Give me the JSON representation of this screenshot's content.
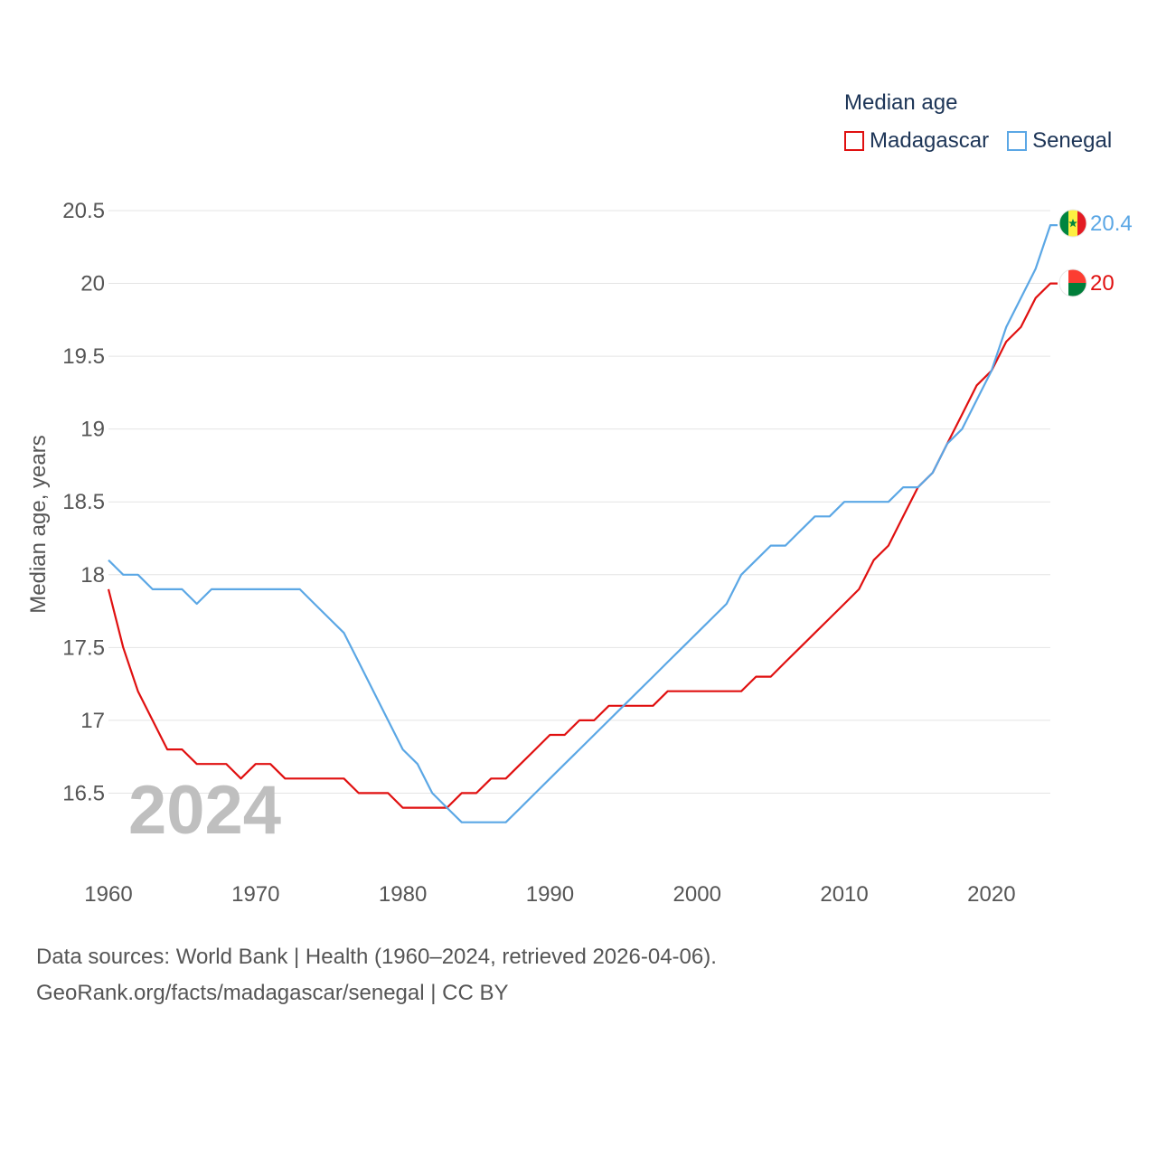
{
  "chart_data": {
    "type": "line",
    "legend_title": "Median age",
    "ylabel": "Median age, years",
    "xlabel": "",
    "ylim": [
      16.0,
      20.5
    ],
    "xlim": [
      1960,
      2024
    ],
    "y_ticks": [
      16.5,
      17,
      17.5,
      18,
      18.5,
      19,
      19.5,
      20,
      20.5
    ],
    "y_tick_labels": [
      "16.5",
      "17",
      "17.5",
      "18",
      "18.5",
      "19",
      "19.5",
      "20",
      "20.5"
    ],
    "x_ticks": [
      1960,
      1970,
      1980,
      1990,
      2000,
      2010,
      2020
    ],
    "x_tick_labels": [
      "1960",
      "1970",
      "1980",
      "1990",
      "2000",
      "2010",
      "2020"
    ],
    "year_label": "2024",
    "legend_position": "top-right",
    "grid": true,
    "x": [
      1960,
      1961,
      1962,
      1963,
      1964,
      1965,
      1966,
      1967,
      1968,
      1969,
      1970,
      1971,
      1972,
      1973,
      1974,
      1975,
      1976,
      1977,
      1978,
      1979,
      1980,
      1981,
      1982,
      1983,
      1984,
      1985,
      1986,
      1987,
      1988,
      1989,
      1990,
      1991,
      1992,
      1993,
      1994,
      1995,
      1996,
      1997,
      1998,
      1999,
      2000,
      2001,
      2002,
      2003,
      2004,
      2005,
      2006,
      2007,
      2008,
      2009,
      2010,
      2011,
      2012,
      2013,
      2014,
      2015,
      2016,
      2017,
      2018,
      2019,
      2020,
      2021,
      2022,
      2023,
      2024
    ],
    "series": [
      {
        "name": "Madagascar",
        "color": "#e01010",
        "end_label": "20",
        "flag": "madagascar-flag",
        "values": [
          17.9,
          17.5,
          17.2,
          17.0,
          16.8,
          16.8,
          16.7,
          16.7,
          16.7,
          16.6,
          16.7,
          16.7,
          16.6,
          16.6,
          16.6,
          16.6,
          16.6,
          16.5,
          16.5,
          16.5,
          16.4,
          16.4,
          16.4,
          16.4,
          16.5,
          16.5,
          16.6,
          16.6,
          16.7,
          16.8,
          16.9,
          16.9,
          17.0,
          17.0,
          17.1,
          17.1,
          17.1,
          17.1,
          17.2,
          17.2,
          17.2,
          17.2,
          17.2,
          17.2,
          17.3,
          17.3,
          17.4,
          17.5,
          17.6,
          17.7,
          17.8,
          17.9,
          18.1,
          18.2,
          18.4,
          18.6,
          18.7,
          18.9,
          19.1,
          19.3,
          19.4,
          19.6,
          19.7,
          19.9,
          20.0
        ]
      },
      {
        "name": "Senegal",
        "color": "#5ba7e5",
        "end_label": "20.4",
        "flag": "senegal-flag",
        "values": [
          18.1,
          18.0,
          18.0,
          17.9,
          17.9,
          17.9,
          17.8,
          17.9,
          17.9,
          17.9,
          17.9,
          17.9,
          17.9,
          17.9,
          17.8,
          17.7,
          17.6,
          17.4,
          17.2,
          17.0,
          16.8,
          16.7,
          16.5,
          16.4,
          16.3,
          16.3,
          16.3,
          16.3,
          16.4,
          16.5,
          16.6,
          16.7,
          16.8,
          16.9,
          17.0,
          17.1,
          17.2,
          17.3,
          17.4,
          17.5,
          17.6,
          17.7,
          17.8,
          18.0,
          18.1,
          18.2,
          18.2,
          18.3,
          18.4,
          18.4,
          18.5,
          18.5,
          18.5,
          18.5,
          18.6,
          18.6,
          18.7,
          18.9,
          19.0,
          19.2,
          19.4,
          19.7,
          19.9,
          20.1,
          20.4
        ]
      }
    ]
  },
  "footer": {
    "line1": "Data sources: World Bank | Health (1960–2024, retrieved 2026-04-06).",
    "line2": "GeoRank.org/facts/madagascar/senegal | CC BY"
  }
}
